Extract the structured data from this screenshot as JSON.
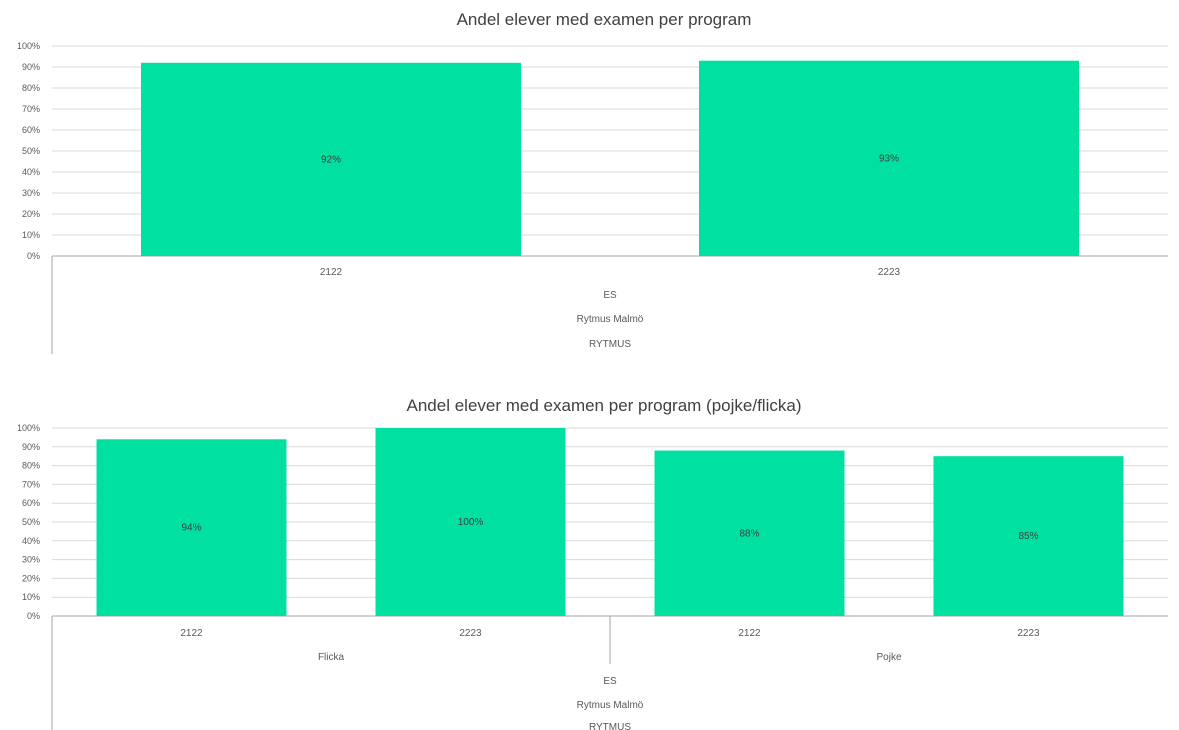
{
  "chart_data": [
    {
      "type": "bar",
      "title": "Andel elever med examen per program",
      "categories": [
        "2122",
        "2223"
      ],
      "values": [
        92,
        93
      ],
      "data_labels": [
        "92%",
        "93%"
      ],
      "ylim": [
        0,
        100
      ],
      "yticks": [
        "0%",
        "10%",
        "20%",
        "30%",
        "40%",
        "50%",
        "60%",
        "70%",
        "80%",
        "90%",
        "100%"
      ],
      "group_levels": [
        {
          "labels": [
            "ES"
          ]
        },
        {
          "labels": [
            "Rytmus Malmö"
          ]
        },
        {
          "labels": [
            "RYTMUS"
          ]
        }
      ],
      "bar_color": "#00E0A0",
      "grid": true,
      "legend": "none"
    },
    {
      "type": "bar",
      "title": "Andel elever med examen per program (pojke/flicka)",
      "categories": [
        "2122",
        "2223",
        "2122",
        "2223"
      ],
      "values": [
        94,
        100,
        88,
        85
      ],
      "data_labels": [
        "94%",
        "100%",
        "88%",
        "85%"
      ],
      "ylim": [
        0,
        100
      ],
      "yticks": [
        "0%",
        "10%",
        "20%",
        "30%",
        "40%",
        "50%",
        "60%",
        "70%",
        "80%",
        "90%",
        "100%"
      ],
      "group_levels": [
        {
          "labels": [
            "Flicka",
            "Pojke"
          ]
        },
        {
          "labels": [
            "ES"
          ]
        },
        {
          "labels": [
            "Rytmus Malmö"
          ]
        },
        {
          "labels": [
            "RYTMUS"
          ]
        }
      ],
      "bar_color": "#00E0A0",
      "grid": true,
      "legend": "none"
    }
  ]
}
